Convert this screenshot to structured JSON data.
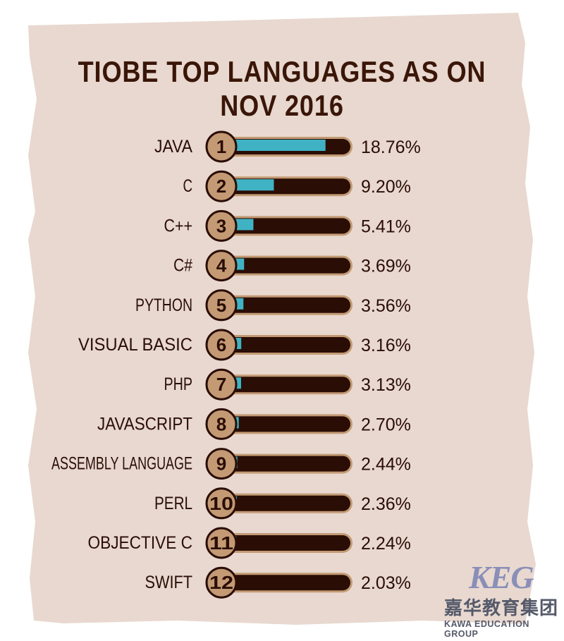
{
  "title": "TIOBE TOP LANGUAGES AS ON NOV 2016",
  "colors": {
    "parchment": "#e8d8cf",
    "title_text": "#3a1608",
    "bar_track": "#2a0d05",
    "bar_track_outline": "#c39a74",
    "bar_fill": "#3fb3c4",
    "rank_badge": "#c39a74"
  },
  "chart_data": {
    "type": "bar",
    "orientation": "horizontal",
    "title": "TIOBE TOP LANGUAGES AS ON NOV 2016",
    "categories": [
      "JAVA",
      "C",
      "C++",
      "C#",
      "PYTHON",
      "VISUAL BASIC",
      "PHP",
      "JAVASCRIPT",
      "ASSEMBLY LANGUAGE",
      "PERL",
      "OBJECTIVE C",
      "SWIFT"
    ],
    "ranks": [
      "1",
      "2",
      "3",
      "4",
      "5",
      "6",
      "7",
      "8",
      "9",
      "10",
      "11",
      "12"
    ],
    "values": [
      18.76,
      9.2,
      5.41,
      3.69,
      3.56,
      3.16,
      3.13,
      2.7,
      2.44,
      2.36,
      2.24,
      2.03
    ],
    "value_labels": [
      "18.76%",
      "9.20%",
      "5.41%",
      "3.69%",
      "3.56%",
      "3.16%",
      "3.13%",
      "2.70%",
      "2.44%",
      "2.36%",
      "2.24%",
      "2.03%"
    ],
    "xlim": [
      0,
      23.5
    ],
    "grid": false,
    "legend": "none"
  },
  "logo": {
    "mark": "KEG",
    "chinese": "嘉华教育集团",
    "english": "KAWA EDUCATION GROUP"
  }
}
